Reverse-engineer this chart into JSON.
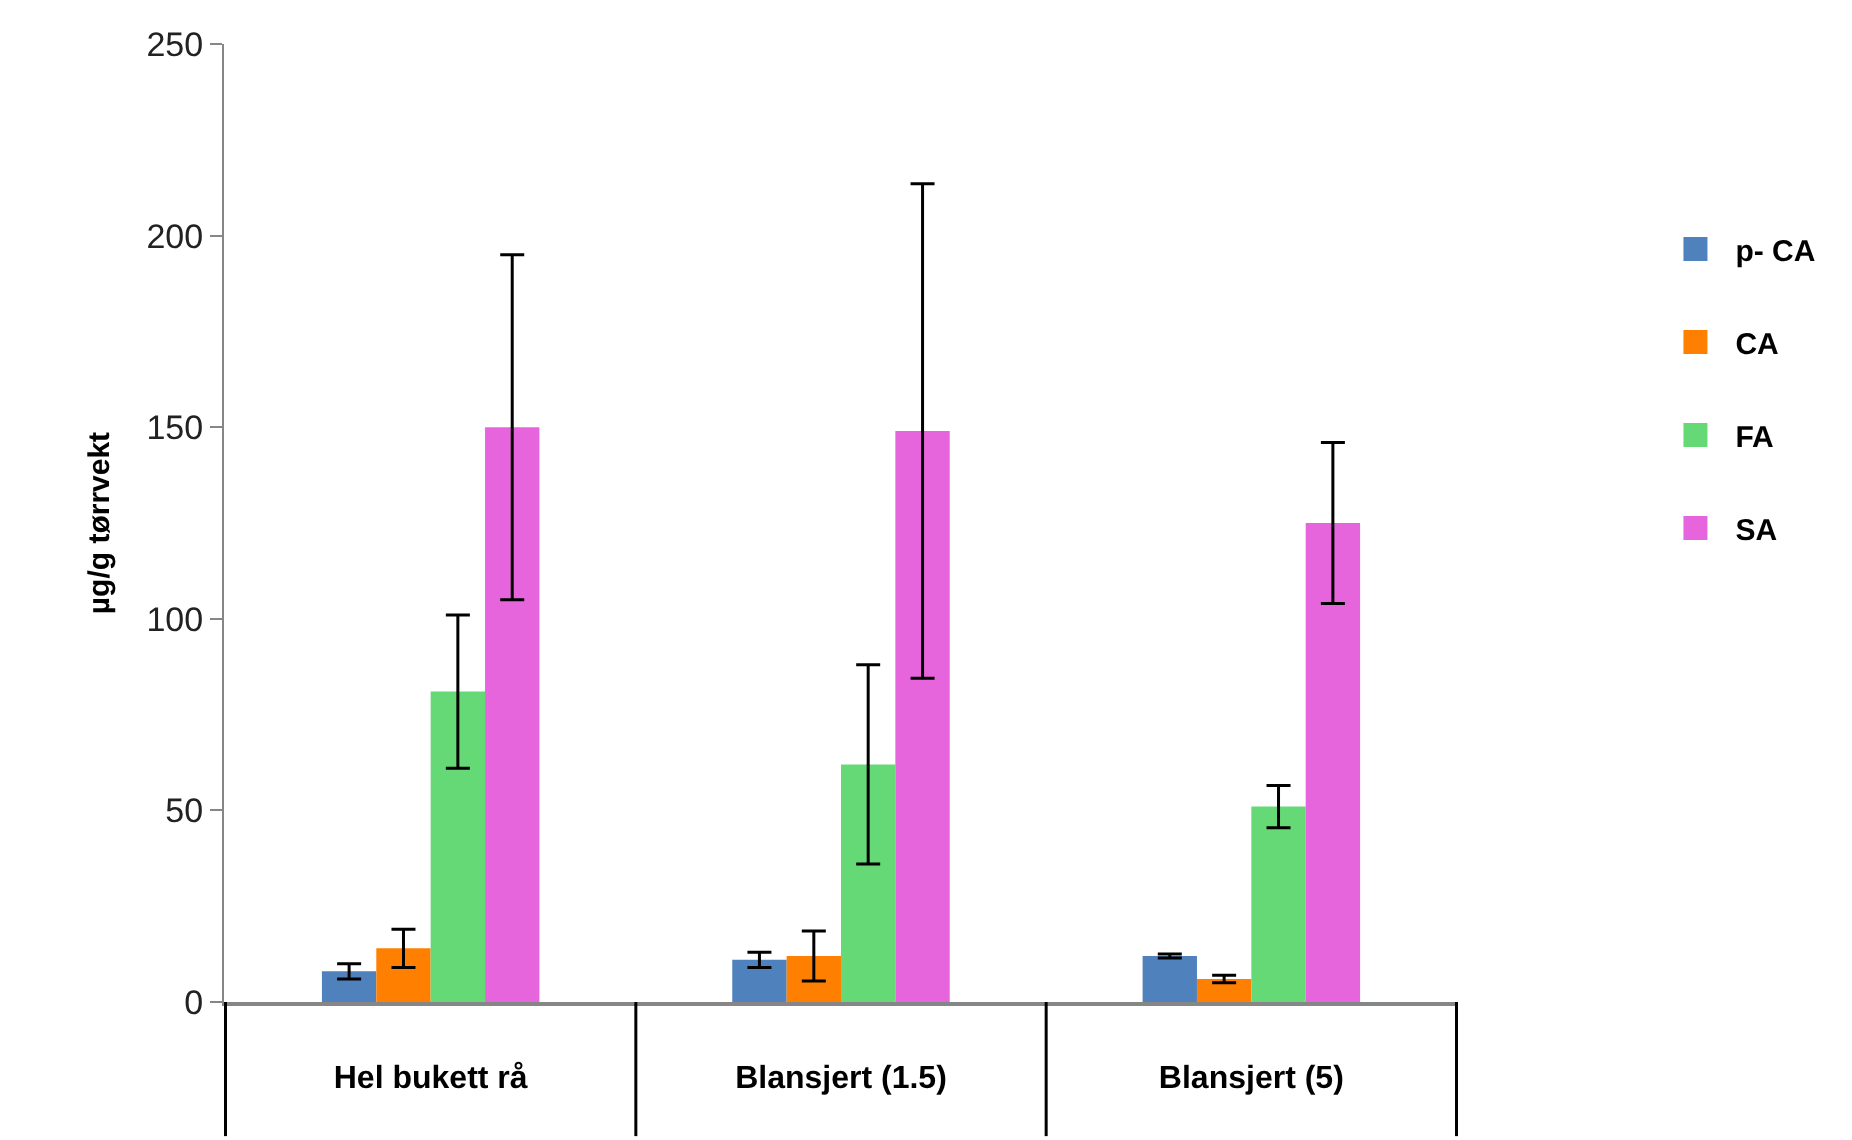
{
  "chart_data": {
    "type": "bar",
    "ylabel": "µg/g tørrvekt",
    "categories": [
      "Hel bukett rå",
      "Blansjert (1.5)",
      "Blansjert (5)"
    ],
    "series": [
      {
        "name": "p- CA",
        "color": "#4f81bd",
        "values": [
          8,
          11,
          12
        ],
        "errors": [
          2,
          2,
          0.5
        ]
      },
      {
        "name": "CA",
        "color": "#ff8000",
        "values": [
          14,
          12,
          6
        ],
        "errors": [
          5,
          6.5,
          1
        ]
      },
      {
        "name": "FA",
        "color": "#66d977",
        "values": [
          81,
          62,
          51
        ],
        "errors": [
          20,
          26,
          5.5
        ]
      },
      {
        "name": "SA",
        "color": "#e765dc",
        "values": [
          150,
          149,
          125
        ],
        "errors": [
          45,
          64.5,
          21
        ]
      }
    ],
    "ylim": [
      0,
      250
    ],
    "yticks": [
      0,
      50,
      100,
      150,
      200,
      250
    ],
    "legend": "right"
  }
}
